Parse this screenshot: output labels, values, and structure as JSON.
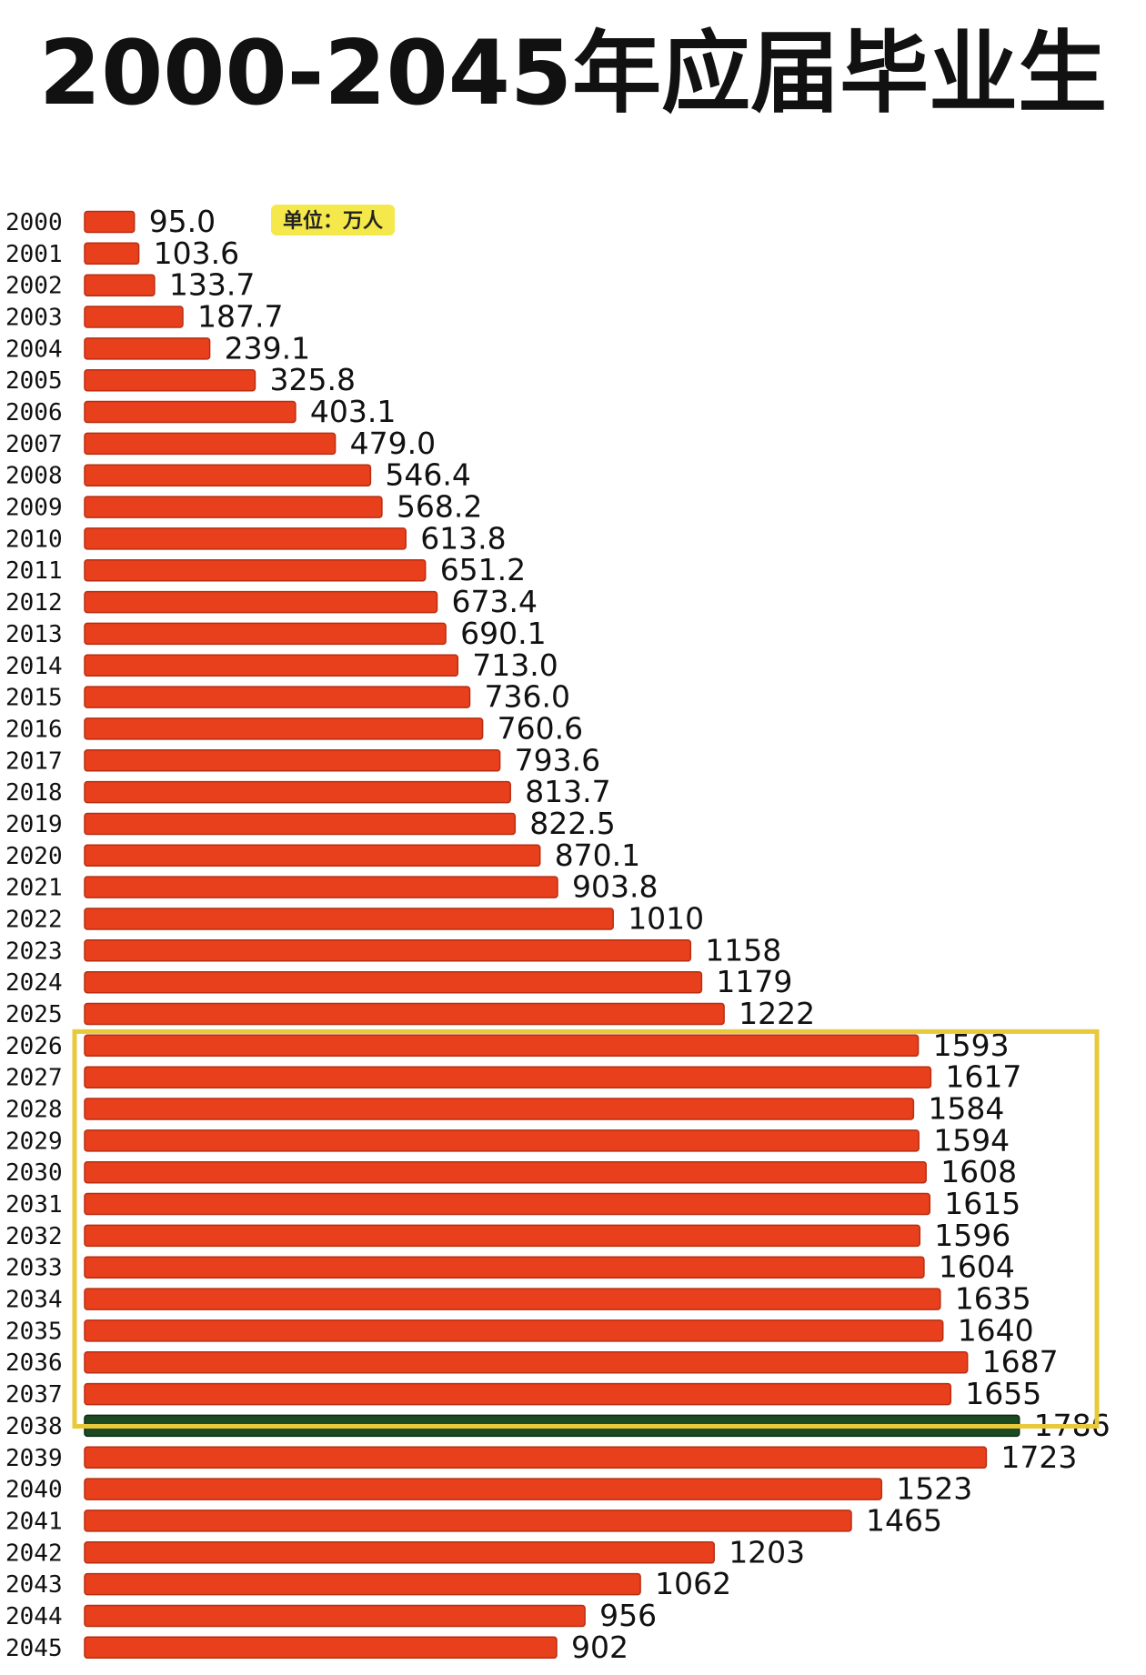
{
  "chart_data": {
    "type": "bar",
    "orientation": "horizontal",
    "title": "2000-2045年应届毕业生",
    "unit_label": "单位：万人",
    "categories": [
      "2000",
      "2001",
      "2002",
      "2003",
      "2004",
      "2005",
      "2006",
      "2007",
      "2008",
      "2009",
      "2010",
      "2011",
      "2012",
      "2013",
      "2014",
      "2015",
      "2016",
      "2017",
      "2018",
      "2019",
      "2020",
      "2021",
      "2022",
      "2023",
      "2024",
      "2025",
      "2026",
      "2027",
      "2028",
      "2029",
      "2030",
      "2031",
      "2032",
      "2033",
      "2034",
      "2035",
      "2036",
      "2037",
      "2038",
      "2039",
      "2040",
      "2041",
      "2042",
      "2043",
      "2044",
      "2045"
    ],
    "values": [
      95.0,
      103.6,
      133.7,
      187.7,
      239.1,
      325.8,
      403.1,
      479.0,
      546.4,
      568.2,
      613.8,
      651.2,
      673.4,
      690.1,
      713.0,
      736.0,
      760.6,
      793.6,
      813.7,
      822.5,
      870.1,
      903.8,
      1010,
      1158,
      1179,
      1222,
      1593,
      1617,
      1584,
      1594,
      1608,
      1615,
      1596,
      1604,
      1635,
      1640,
      1687,
      1655,
      1786,
      1723,
      1523,
      1465,
      1203,
      1062,
      956,
      902
    ],
    "value_labels": [
      "95.0",
      "103.6",
      "133.7",
      "187.7",
      "239.1",
      "325.8",
      "403.1",
      "479.0",
      "546.4",
      "568.2",
      "613.8",
      "651.2",
      "673.4",
      "690.1",
      "713.0",
      "736.0",
      "760.6",
      "793.6",
      "813.7",
      "822.5",
      "870.1",
      "903.8",
      "1010",
      "1158",
      "1179",
      "1222",
      "1593",
      "1617",
      "1584",
      "1594",
      "1608",
      "1615",
      "1596",
      "1604",
      "1635",
      "1640",
      "1687",
      "1655",
      "1786",
      "1723",
      "1523",
      "1465",
      "1203",
      "1062",
      "956",
      "902"
    ],
    "highlight_range": [
      "2026",
      "2037"
    ],
    "peak_category": "2038",
    "colors": {
      "bar": "#e8401c",
      "bar_edge": "#b82d10",
      "peak_bar": "#1c4a22",
      "highlight_box": "#e8c93a",
      "unit_badge": "#f5e84a"
    },
    "xlim": [
      0,
      1800
    ]
  }
}
